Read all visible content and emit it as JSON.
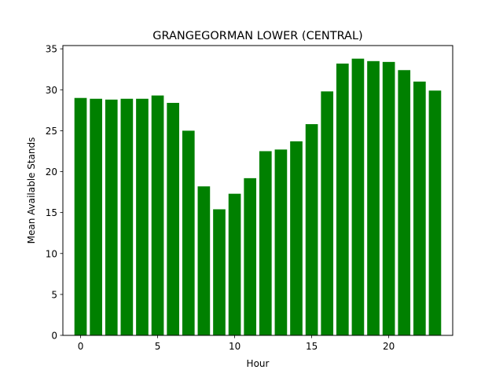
{
  "chart_data": {
    "type": "bar",
    "title": "GRANGEGORMAN LOWER (CENTRAL)",
    "xlabel": "Hour",
    "ylabel": "Mean Available Stands",
    "x": [
      0,
      1,
      2,
      3,
      4,
      5,
      6,
      7,
      8,
      9,
      10,
      11,
      12,
      13,
      14,
      15,
      16,
      17,
      18,
      19,
      20,
      21,
      22,
      23
    ],
    "values": [
      29.0,
      28.9,
      28.8,
      28.9,
      28.9,
      29.3,
      28.4,
      25.0,
      18.2,
      15.4,
      17.3,
      19.2,
      22.5,
      22.7,
      23.7,
      25.8,
      29.8,
      33.2,
      33.8,
      33.5,
      33.4,
      32.4,
      31.0,
      29.9
    ],
    "xlim": [
      -1.15,
      24.15
    ],
    "ylim": [
      0,
      35.4
    ],
    "xticks": [
      0,
      5,
      10,
      15,
      20
    ],
    "yticks": [
      0,
      5,
      10,
      15,
      20,
      25,
      30,
      35
    ],
    "bar_color": "#008000",
    "grid": false
  }
}
